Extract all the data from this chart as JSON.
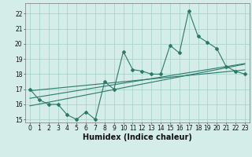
{
  "xlabel": "Humidex (Indice chaleur)",
  "ylabel": "",
  "bg_color": "#d4ede8",
  "grid_color": "#a8d4cc",
  "line_color": "#2a7a6a",
  "x_data": [
    0,
    1,
    2,
    3,
    4,
    5,
    6,
    7,
    8,
    9,
    10,
    11,
    12,
    13,
    14,
    15,
    16,
    17,
    18,
    19,
    20,
    21,
    22,
    23
  ],
  "y_main": [
    17.0,
    16.3,
    16.0,
    16.0,
    15.3,
    15.0,
    15.5,
    15.0,
    17.5,
    17.0,
    19.5,
    18.3,
    18.2,
    18.0,
    18.0,
    19.9,
    19.4,
    22.2,
    20.5,
    20.1,
    19.7,
    18.5,
    18.2,
    18.0
  ],
  "y_trend1": [
    15.9,
    16.02,
    16.14,
    16.26,
    16.38,
    16.5,
    16.62,
    16.74,
    16.86,
    16.98,
    17.1,
    17.22,
    17.34,
    17.46,
    17.58,
    17.7,
    17.82,
    17.94,
    18.06,
    18.18,
    18.3,
    18.42,
    18.54,
    18.66
  ],
  "y_trend2": [
    16.4,
    16.5,
    16.6,
    16.7,
    16.8,
    16.9,
    17.0,
    17.1,
    17.2,
    17.3,
    17.4,
    17.5,
    17.6,
    17.7,
    17.8,
    17.9,
    18.0,
    18.1,
    18.2,
    18.3,
    18.4,
    18.5,
    18.6,
    18.7
  ],
  "y_trend3": [
    16.9,
    16.96,
    17.02,
    17.08,
    17.14,
    17.2,
    17.26,
    17.32,
    17.38,
    17.44,
    17.5,
    17.56,
    17.62,
    17.68,
    17.74,
    17.8,
    17.86,
    17.92,
    17.98,
    18.04,
    18.1,
    18.16,
    18.22,
    18.28
  ],
  "ylim": [
    14.8,
    22.7
  ],
  "xlim": [
    -0.5,
    23.5
  ],
  "yticks": [
    15,
    16,
    17,
    18,
    19,
    20,
    21,
    22
  ],
  "xticks": [
    0,
    1,
    2,
    3,
    4,
    5,
    6,
    7,
    8,
    9,
    10,
    11,
    12,
    13,
    14,
    15,
    16,
    17,
    18,
    19,
    20,
    21,
    22,
    23
  ],
  "tick_fontsize": 5.5,
  "xlabel_fontsize": 7.0
}
